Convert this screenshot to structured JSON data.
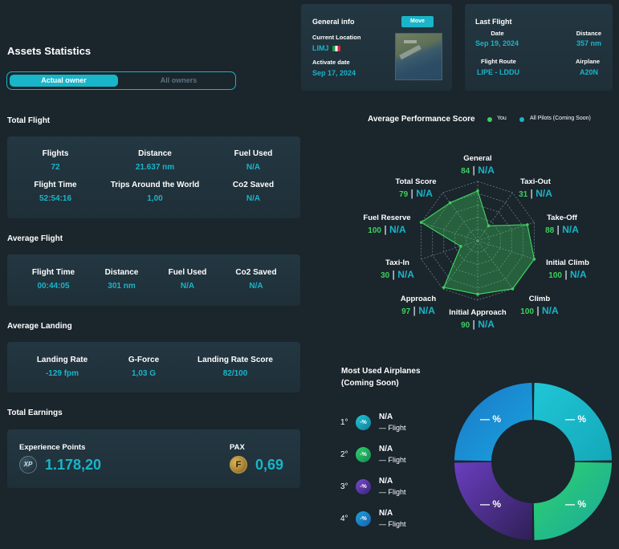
{
  "header": {
    "title": "Assets Statistics"
  },
  "owner_toggle": {
    "active": "Actual owner",
    "inactive": "All owners"
  },
  "general_info": {
    "title": "General info",
    "move_button": "Move",
    "location_label": "Current Location",
    "location_value": "LIMJ",
    "activate_label": "Activate date",
    "activate_value": "Sep 17, 2024"
  },
  "last_flight": {
    "title": "Last Flight",
    "date_label": "Date",
    "date_value": "Sep 19, 2024",
    "distance_label": "Distance",
    "distance_value": "357 nm",
    "route_label": "Flight Route",
    "route_value": "LIPE - LDDU",
    "airplane_label": "Airplane",
    "airplane_value": "A20N"
  },
  "total_flight": {
    "title": "Total Flight",
    "stats": [
      {
        "label": "Flights",
        "value": "72"
      },
      {
        "label": "Distance",
        "value": "21.637 nm"
      },
      {
        "label": "Fuel Used",
        "value": "N/A"
      },
      {
        "label": "Flight Time",
        "value": "52:54:16"
      },
      {
        "label": "Trips Around the World",
        "value": "1,00"
      },
      {
        "label": "Co2 Saved",
        "value": "N/A"
      }
    ]
  },
  "average_flight": {
    "title": "Average Flight",
    "stats": [
      {
        "label": "Flight Time",
        "value": "00:44:05"
      },
      {
        "label": "Distance",
        "value": "301 nm"
      },
      {
        "label": "Fuel Used",
        "value": "N/A"
      },
      {
        "label": "Co2 Saved",
        "value": "N/A"
      }
    ]
  },
  "average_landing": {
    "title": "Average Landing",
    "stats": [
      {
        "label": "Landing Rate",
        "value": "-129 fpm"
      },
      {
        "label": "G-Force",
        "value": "1,03 G"
      },
      {
        "label": "Landing Rate Score",
        "value": "82/100"
      }
    ]
  },
  "total_earnings": {
    "title": "Total Earnings",
    "xp_label": "Experience Points",
    "xp_value": "1.178,20",
    "pax_label": "PAX",
    "pax_value": "0,69"
  },
  "performance": {
    "title": "Average Performance Score",
    "legend_you": "You",
    "legend_all": "All Pilots (Coming Soon)",
    "na": "N/A",
    "colors": {
      "you": "#3ecf5e",
      "all": "#19b5c9"
    }
  },
  "chart_data": [
    {
      "type": "radar",
      "title": "Average Performance Score",
      "categories": [
        "General",
        "Taxi-Out",
        "Take-Off",
        "Initial Climb",
        "Climb",
        "Initial Approach",
        "Approach",
        "Taxi-In",
        "Fuel Reserve",
        "Total Score"
      ],
      "series": [
        {
          "name": "You",
          "values": [
            84,
            31,
            88,
            100,
            100,
            90,
            97,
            30,
            100,
            79
          ]
        },
        {
          "name": "All Pilots (Coming Soon)",
          "values": [
            "N/A",
            "N/A",
            "N/A",
            "N/A",
            "N/A",
            "N/A",
            "N/A",
            "N/A",
            "N/A",
            "N/A"
          ]
        }
      ],
      "ylim": [
        0,
        100
      ],
      "legend": "top"
    },
    {
      "type": "pie",
      "title": "Most Used Airplanes (Coming Soon)",
      "labels": [
        "— %",
        "— %",
        "— %",
        "— %"
      ],
      "colors": [
        "#1fc6d6",
        "#2ed36a",
        "#6a3ec0",
        "#1d8fd6"
      ]
    }
  ],
  "airplanes": {
    "title_line1": "Most Used Airplanes",
    "title_line2": "(Coming Soon)",
    "ball_text": "-%",
    "items": [
      {
        "rank": "1°",
        "name": "N/A",
        "flights": "— Flight"
      },
      {
        "rank": "2°",
        "name": "N/A",
        "flights": "— Flight"
      },
      {
        "rank": "3°",
        "name": "N/A",
        "flights": "— Flight"
      },
      {
        "rank": "4°",
        "name": "N/A",
        "flights": "— Flight"
      }
    ]
  }
}
